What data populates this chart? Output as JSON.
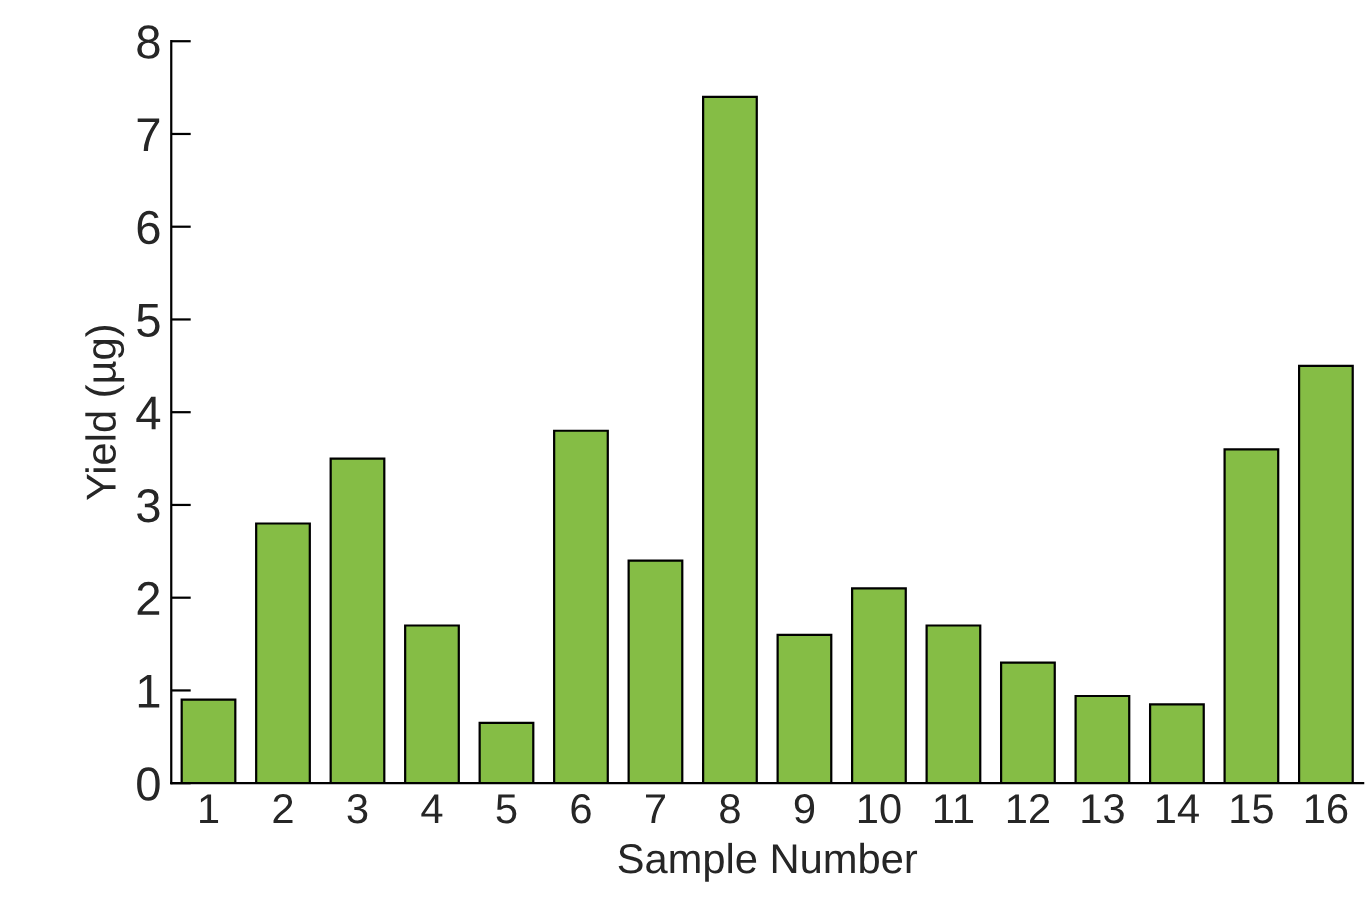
{
  "chart_data": {
    "type": "bar",
    "xlabel": "Sample Number",
    "ylabel": "Yield (µg)",
    "categories": [
      "1",
      "2",
      "3",
      "4",
      "5",
      "6",
      "7",
      "8",
      "9",
      "10",
      "11",
      "12",
      "13",
      "14",
      "15",
      "16"
    ],
    "values": [
      0.9,
      2.8,
      3.5,
      1.7,
      0.65,
      3.8,
      2.4,
      7.4,
      1.6,
      2.1,
      1.7,
      1.3,
      0.94,
      0.85,
      3.6,
      4.5
    ],
    "color": "#85bd45",
    "ylim": [
      0,
      8
    ],
    "yticks": [
      0,
      1,
      2,
      3,
      4,
      5,
      6,
      7,
      8
    ],
    "grid": false,
    "legend": false
  }
}
